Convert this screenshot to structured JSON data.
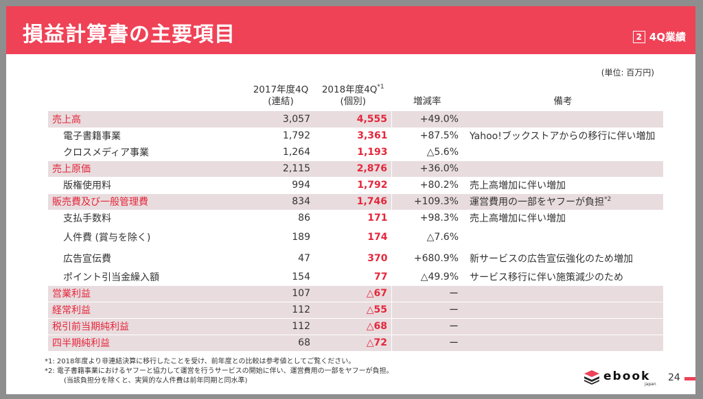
{
  "header": {
    "title": "損益計算書の主要項目",
    "section_num": "2",
    "section_label": "4Q業績"
  },
  "unit": "(単位: 百万円)",
  "table": {
    "columns": {
      "c2017": [
        "2017年度4Q",
        "(連結)"
      ],
      "c2018": [
        "2018年度4Q",
        "(個別)"
      ],
      "c2018_sup": "*1",
      "rate": "増減率",
      "note": "備考"
    },
    "rows": [
      {
        "name": "売上高",
        "v2017": "3,057",
        "v2018": "4,555",
        "rate": "+49.0%",
        "note": "",
        "highlight": true
      },
      {
        "name": "電子書籍事業",
        "v2017": "1,792",
        "v2018": "3,361",
        "rate": "+87.5%",
        "note": "Yahoo!ブックストアからの移行に伴い増加",
        "highlight": false
      },
      {
        "name": "クロスメディア事業",
        "v2017": "1,264",
        "v2018": "1,193",
        "rate": "△5.6%",
        "note": "",
        "highlight": false
      },
      {
        "name": "売上原価",
        "v2017": "2,115",
        "v2018": "2,876",
        "rate": "+36.0%",
        "note": "",
        "highlight": true
      },
      {
        "name": "版権使用料",
        "v2017": "994",
        "v2018": "1,792",
        "rate": "+80.2%",
        "note": "売上高増加に伴い増加",
        "highlight": false
      },
      {
        "name": "販売費及び一般管理費",
        "v2017": "834",
        "v2018": "1,746",
        "rate": "+109.3%",
        "note": "運営費用の一部をヤフーが負担",
        "note_sup": "*2",
        "highlight": true
      },
      {
        "name": "支払手数料",
        "v2017": "86",
        "v2018": "171",
        "rate": "+98.3%",
        "note": "売上高増加に伴い増加",
        "highlight": false
      },
      {
        "name": "人件費 (賞与を除く)",
        "v2017": "189",
        "v2018": "174",
        "rate": "△7.6%",
        "note": "",
        "highlight": false,
        "tall": true
      },
      {
        "name": "広告宣伝費",
        "v2017": "47",
        "v2018": "370",
        "rate": "+680.9%",
        "note": "新サービスの広告宣伝強化のため増加",
        "highlight": false,
        "tall": true
      },
      {
        "name": "ポイント引当金繰入額",
        "v2017": "154",
        "v2018": "77",
        "rate": "△49.9%",
        "note": "サービス移行に伴い施策減少のため",
        "highlight": false
      },
      {
        "name": "営業利益",
        "v2017": "107",
        "v2018": "△67",
        "rate": "ー",
        "note": "",
        "highlight": true
      },
      {
        "name": "経常利益",
        "v2017": "112",
        "v2018": "△55",
        "rate": "ー",
        "note": "",
        "highlight": true
      },
      {
        "name": "税引前当期純利益",
        "v2017": "112",
        "v2018": "△68",
        "rate": "ー",
        "note": "",
        "highlight": true
      },
      {
        "name": "四半期純利益",
        "v2017": "68",
        "v2018": "△72",
        "rate": "ー",
        "note": "",
        "highlight": true
      }
    ]
  },
  "footnotes": {
    "n1": "*1: 2018年度より非連結決算に移行したことを受け、前年度との比較は参考値としてご覧ください。",
    "n2": "*2: 電子書籍事業におけるヤフーと協力して運営を行うサービスの開始に伴い、運営費用の一部をヤフーが負担。",
    "n2b": "(当該負担分を除くと、実質的な人件費は前年同期と同水準)"
  },
  "logo": {
    "text": "ebook",
    "sub": "japan"
  },
  "page_number": "24",
  "colors": {
    "accent": "#ef4257",
    "highlight_row": "#e8dcde",
    "value_red": "#e5263b"
  }
}
